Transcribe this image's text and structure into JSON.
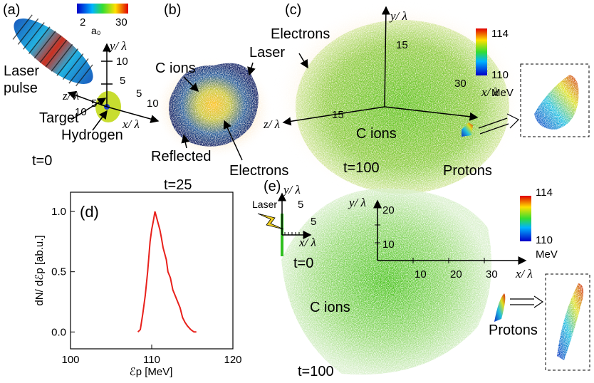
{
  "panels": {
    "a": {
      "label": "(a)",
      "colorbar_min": "2",
      "colorbar_max": "30",
      "colorbar_title": "a₀",
      "y_axis": "y/ λ",
      "z_axis": "z/ λ",
      "x_axis": "x/ λ",
      "ticks": [
        "10",
        "5",
        "5",
        "10",
        "10",
        "5"
      ],
      "laser": [
        "Laser",
        "pulse"
      ],
      "target": "Target",
      "hydrogen": "Hydrogen",
      "time": "t=0"
    },
    "b": {
      "label": "(b)",
      "c_ions": "C ions",
      "laser": "Laser",
      "reflected": "Reflected",
      "electrons": "Electrons",
      "time": "t=25"
    },
    "c": {
      "label": "(c)",
      "y_axis": "y/ λ",
      "y_tick": "15",
      "electrons": "Electrons",
      "colorbar_max": "114",
      "colorbar_min": "110",
      "colorbar_unit": "MeV",
      "x_tick": "30",
      "x_axis": "x/ λ",
      "z_axis": "z/ λ",
      "z_tick": "15",
      "c_ions": "C ions",
      "time": "t=100",
      "protons": "Protons"
    },
    "e": {
      "label": "(e)",
      "laser": "Laser",
      "small_y_axis": "y/ λ",
      "small_y_tick": "5",
      "small_x_tick": "5",
      "small_x_axis": "x/ λ",
      "small_time": "t=0",
      "y_axis": "y/ λ",
      "y_ticks": [
        "20",
        "10"
      ],
      "x_ticks": [
        "10",
        "20",
        "30"
      ],
      "x_axis": "x/ λ",
      "colorbar_max": "114",
      "colorbar_min": "110",
      "colorbar_unit": "MeV",
      "c_ions": "C ions",
      "protons": "Protons",
      "time": "t=100"
    }
  },
  "chart_data": {
    "type": "line",
    "label": "(d)",
    "ylabel": "dN/ dℰp [ab.u.]",
    "xlabel": "ℰp [MeV]",
    "color": "#e8211c",
    "x": [
      108.3,
      108.6,
      108.9,
      109.2,
      109.5,
      109.8,
      110.0,
      110.2,
      110.4,
      110.6,
      110.8,
      111.0,
      111.2,
      111.4,
      111.6,
      111.8,
      112.0,
      112.3,
      112.6,
      112.9,
      113.2,
      113.5,
      113.8,
      114.1,
      114.4,
      114.8,
      115.2,
      115.5
    ],
    "values": [
      0,
      0.02,
      0.15,
      0.3,
      0.5,
      0.75,
      0.85,
      0.92,
      1.0,
      0.95,
      0.9,
      0.85,
      0.78,
      0.7,
      0.65,
      0.6,
      0.5,
      0.45,
      0.35,
      0.3,
      0.25,
      0.2,
      0.12,
      0.08,
      0.05,
      0.02,
      0,
      0
    ],
    "xlim": [
      100,
      120
    ],
    "xticks": [
      100,
      110,
      120
    ],
    "ylim": [
      -0.14,
      1.16
    ],
    "yticks": [
      {
        "value": 0,
        "label": "0.0"
      },
      {
        "value": 0.5,
        "label": "0.5"
      },
      {
        "value": 1,
        "label": "1.0"
      }
    ]
  }
}
